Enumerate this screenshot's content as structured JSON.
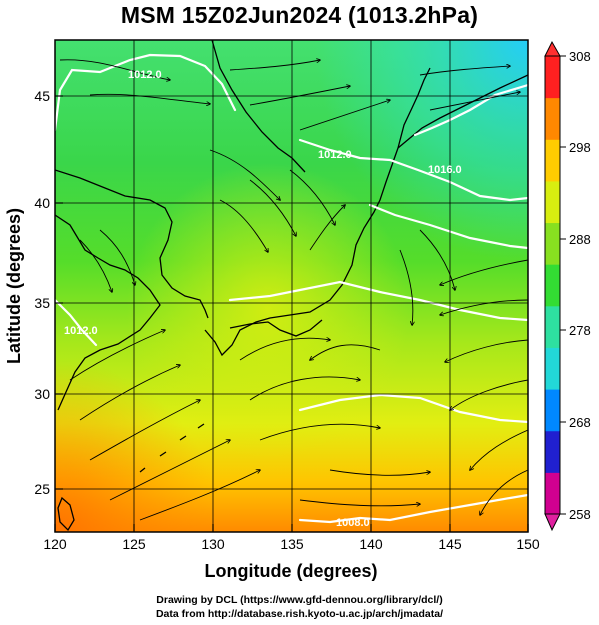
{
  "title": "MSM 15Z02Jun2024 (1013.2hPa)",
  "map": {
    "xlabel": "Longitude (degrees)",
    "ylabel": "Latitude  (degrees)",
    "x_ticks": [
      "120",
      "125",
      "130",
      "135",
      "140",
      "145",
      "150"
    ],
    "y_ticks": [
      "25",
      "30",
      "35",
      "40",
      "45"
    ],
    "lon_range": [
      120,
      150
    ],
    "lat_range": [
      22.4,
      47.6
    ],
    "isobar_labels": [
      "1012.0",
      "1012.0",
      "1016.0",
      "1012.0",
      "1008.0"
    ]
  },
  "colorbar": {
    "ticks": [
      "308",
      "298",
      "288",
      "278",
      "268",
      "258"
    ],
    "range": [
      258,
      308
    ],
    "colors": [
      "#d10090",
      "#2020d0",
      "#0088ff",
      "#22d8d8",
      "#2ee0a0",
      "#33dd33",
      "#88e020",
      "#d8ee10",
      "#ffcc00",
      "#ff8800",
      "#ff2020"
    ]
  },
  "footer": {
    "line1": "Drawing by DCL (https://www.gfd-dennou.org/library/dcl/)",
    "line2": "Data from http://database.rish.kyoto-u.ac.jp/arch/jmadata/"
  }
}
